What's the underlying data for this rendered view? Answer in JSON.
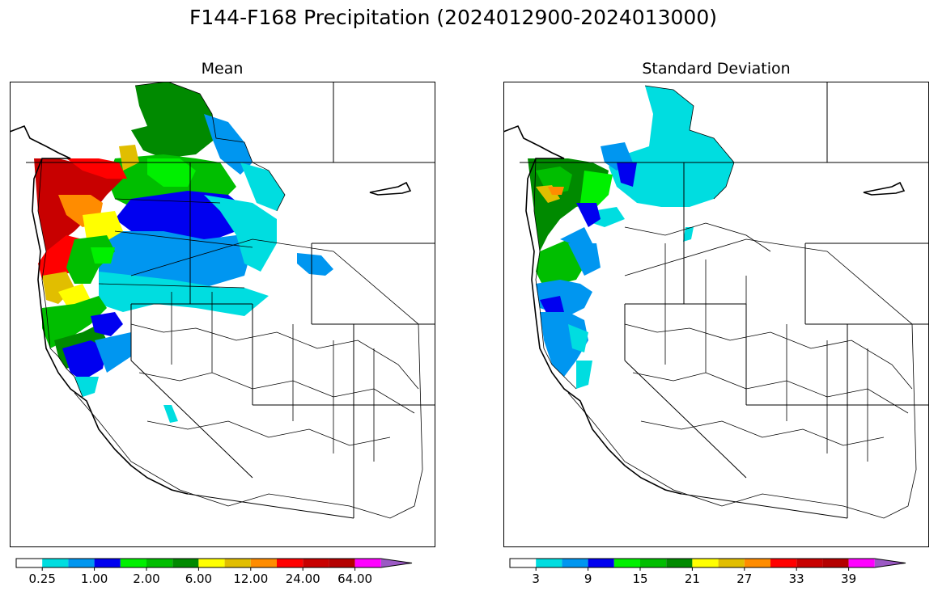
{
  "title": "F144-F168 Precipitation (2024012900-2024013000)",
  "panels": [
    {
      "id": "mean",
      "title": "Mean"
    },
    {
      "id": "std",
      "title": "Standard Deviation"
    }
  ],
  "colorbars": {
    "mean": {
      "colors": [
        "#ffffff",
        "#00dde0",
        "#0096f0",
        "#0000f0",
        "#00f000",
        "#00be00",
        "#008a00",
        "#ffff00",
        "#e1be00",
        "#ff8c00",
        "#ff0000",
        "#c80000",
        "#b40000",
        "#ff00ff",
        "#9b59c4"
      ],
      "ticks": [
        "0.25",
        "1.00",
        "2.00",
        "6.00",
        "12.00",
        "24.00",
        "64.00"
      ]
    },
    "std": {
      "colors": [
        "#ffffff",
        "#00dde0",
        "#0096f0",
        "#0000f0",
        "#00f000",
        "#00be00",
        "#008a00",
        "#ffff00",
        "#e1be00",
        "#ff8c00",
        "#ff0000",
        "#c80000",
        "#b40000",
        "#ff00ff",
        "#9b59c4"
      ],
      "ticks": [
        "3",
        "9",
        "15",
        "21",
        "27",
        "33",
        "39"
      ]
    }
  }
}
